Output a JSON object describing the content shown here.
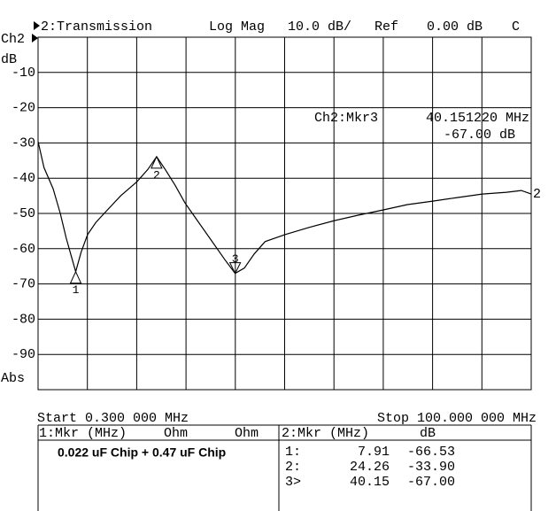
{
  "chart_data": {
    "type": "line",
    "header": {
      "channel": "2:Transmission",
      "format": "Log Mag",
      "scale": "10.0 dB/",
      "ref_label": "Ref",
      "ref": "0.00 dB",
      "flag": "C"
    },
    "channel_label": "Ch2",
    "ylabel": "dB",
    "corner_label": "Abs",
    "annotation": {
      "title": "Ch2:Mkr3",
      "freq": "40.151220 MHz",
      "level": "-67.00 dB"
    },
    "start_label": "Start 0.300 000 MHz",
    "stop_label": "Stop 100.000 000 MHz",
    "xlim": [
      0.3,
      100
    ],
    "ylim": [
      -100,
      0
    ],
    "yticks": [
      -10,
      -20,
      -30,
      -40,
      -50,
      -60,
      -70,
      -80,
      -90
    ],
    "grid": true,
    "series": [
      {
        "name": "2",
        "color": "#000000",
        "x": [
          0.3,
          1.5,
          3.35,
          4.8,
          6.0,
          7.0,
          7.91,
          9.0,
          10.3,
          12.0,
          14.0,
          17.0,
          20.3,
          22.5,
          24.26,
          26.0,
          28.0,
          30.0,
          32.5,
          35.0,
          38.0,
          40.15,
          42.0,
          44.0,
          46.2,
          50.2,
          55.0,
          60.3,
          65.0,
          70.1,
          75.0,
          80.1,
          85.0,
          90.1,
          95.0,
          98.0,
          100.0
        ],
        "values": [
          -29.6,
          -37,
          -43,
          -50,
          -57,
          -62,
          -66.53,
          -61,
          -56,
          -52.5,
          -49.5,
          -45,
          -41,
          -37.5,
          -33.9,
          -37.5,
          -42,
          -47,
          -52,
          -57,
          -63,
          -67,
          -65.5,
          -61.5,
          -58,
          -56,
          -54,
          -52,
          -50.5,
          -49,
          -47.5,
          -46.5,
          -45.5,
          -44.5,
          -44,
          -43.5,
          -44.5
        ]
      }
    ],
    "markers": [
      {
        "label": "1",
        "x": 7.91,
        "value": -66.53
      },
      {
        "label": "2",
        "x": 24.26,
        "value": -33.9
      },
      {
        "label": "3",
        "x": 40.15,
        "value": -67.0
      }
    ]
  },
  "left_panel": {
    "title": "1:Mkr (MHz)",
    "col1": "Ohm",
    "col2": "Ohm",
    "note": "0.022 uF Chip + 0.47 uF Chip"
  },
  "right_panel": {
    "title": "2:Mkr (MHz)",
    "col1": "dB",
    "rows": [
      [
        "1:",
        "7.91",
        "-66.53"
      ],
      [
        "2:",
        "24.26",
        "-33.90"
      ],
      [
        "3>",
        "40.15",
        "-67.00"
      ]
    ]
  }
}
